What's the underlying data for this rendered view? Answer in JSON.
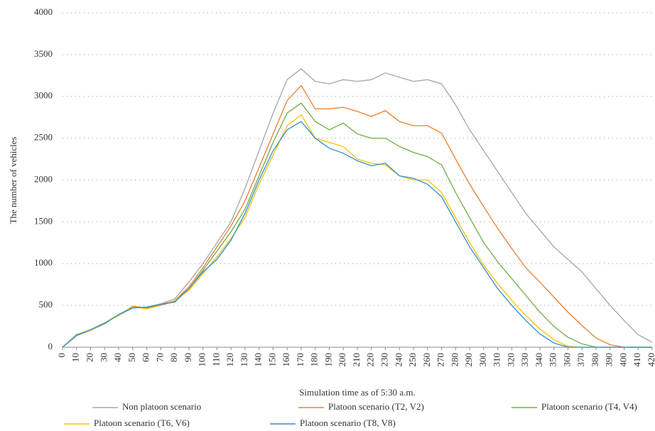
{
  "chart_data": {
    "type": "line",
    "x_label": "Simulation time as of 5:30 a.m.",
    "y_label": "The number of vehicles",
    "x": [
      0,
      10,
      20,
      30,
      40,
      50,
      60,
      70,
      80,
      90,
      100,
      110,
      120,
      130,
      140,
      150,
      160,
      170,
      180,
      190,
      200,
      210,
      220,
      230,
      240,
      250,
      260,
      270,
      280,
      290,
      300,
      310,
      320,
      330,
      340,
      350,
      360,
      370,
      380,
      390,
      400,
      410,
      420
    ],
    "xlim": [
      0,
      420
    ],
    "xticks": [
      0,
      10,
      20,
      30,
      40,
      50,
      60,
      70,
      80,
      90,
      100,
      110,
      120,
      130,
      140,
      150,
      160,
      170,
      180,
      190,
      200,
      210,
      220,
      230,
      240,
      250,
      260,
      270,
      280,
      290,
      300,
      310,
      320,
      330,
      340,
      350,
      360,
      370,
      380,
      390,
      400,
      410,
      420
    ],
    "ylim": [
      0,
      4000
    ],
    "yticks": [
      0,
      500,
      1000,
      1500,
      2000,
      2500,
      3000,
      3500,
      4000
    ],
    "grid": true,
    "legend": "bottom",
    "series": [
      {
        "name": "Non platoon scenario",
        "color": "#a5a5a5",
        "values": [
          0,
          150,
          210,
          290,
          380,
          470,
          480,
          520,
          580,
          780,
          1000,
          1250,
          1500,
          1900,
          2350,
          2800,
          3200,
          3330,
          3180,
          3150,
          3200,
          3180,
          3200,
          3280,
          3230,
          3180,
          3200,
          3150,
          2900,
          2600,
          2350,
          2100,
          1850,
          1600,
          1400,
          1200,
          1050,
          900,
          700,
          500,
          320,
          150,
          60
        ]
      },
      {
        "name": "Platoon scenario (T2, V2)",
        "color": "#ed7d31",
        "values": [
          0,
          140,
          200,
          290,
          380,
          490,
          470,
          510,
          560,
          720,
          950,
          1200,
          1450,
          1750,
          2150,
          2550,
          2950,
          3130,
          2850,
          2850,
          2870,
          2820,
          2760,
          2830,
          2700,
          2650,
          2650,
          2560,
          2250,
          1950,
          1680,
          1420,
          1180,
          950,
          780,
          600,
          420,
          260,
          110,
          30,
          0,
          0,
          0
        ]
      },
      {
        "name": "Platoon scenario (T4, V4)",
        "color": "#70ad47",
        "values": [
          0,
          150,
          200,
          280,
          390,
          480,
          470,
          500,
          550,
          700,
          920,
          1150,
          1380,
          1650,
          2050,
          2450,
          2800,
          2920,
          2700,
          2600,
          2680,
          2550,
          2500,
          2500,
          2400,
          2330,
          2280,
          2180,
          1850,
          1550,
          1250,
          1020,
          820,
          620,
          420,
          250,
          120,
          40,
          0,
          0,
          0,
          0,
          0
        ]
      },
      {
        "name": "Platoon scenario (T6, V6)",
        "color": "#ffc000",
        "values": [
          0,
          140,
          200,
          290,
          380,
          480,
          460,
          500,
          560,
          680,
          880,
          1080,
          1300,
          1550,
          1950,
          2300,
          2650,
          2780,
          2500,
          2450,
          2400,
          2250,
          2200,
          2180,
          2050,
          2000,
          2000,
          1850,
          1550,
          1250,
          980,
          760,
          560,
          380,
          220,
          90,
          10,
          0,
          0,
          0,
          0,
          0,
          0
        ]
      },
      {
        "name": "Platoon scenario (T8, V8)",
        "color": "#2e8fcf",
        "values": [
          0,
          140,
          210,
          290,
          390,
          470,
          480,
          510,
          540,
          700,
          900,
          1050,
          1280,
          1600,
          2000,
          2350,
          2600,
          2700,
          2500,
          2380,
          2320,
          2230,
          2170,
          2200,
          2050,
          2020,
          1950,
          1800,
          1500,
          1200,
          950,
          700,
          500,
          320,
          160,
          50,
          0,
          0,
          0,
          0,
          0,
          0,
          0
        ]
      }
    ]
  }
}
